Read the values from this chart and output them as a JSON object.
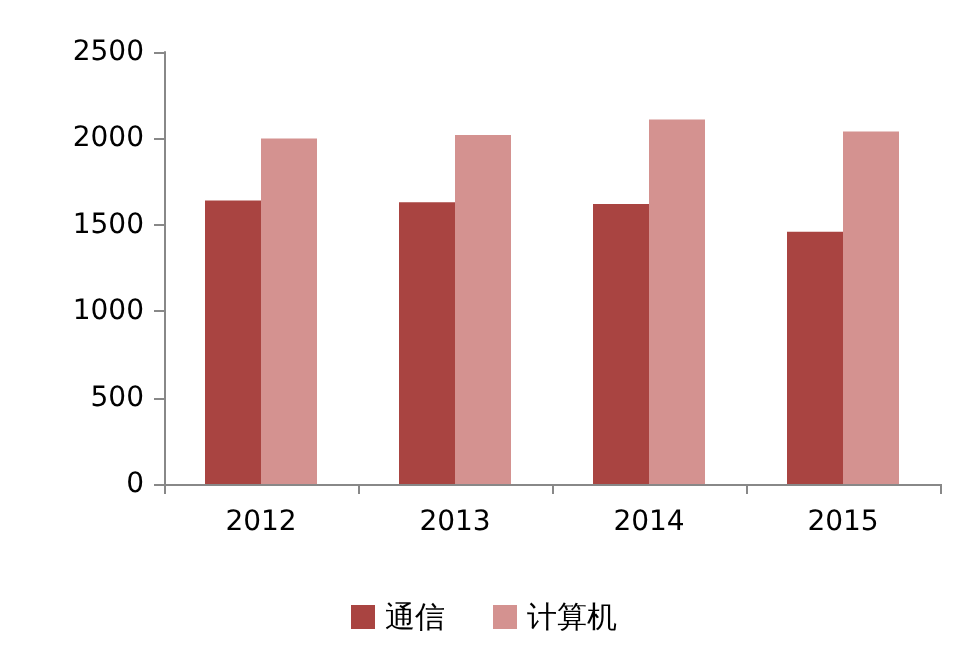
{
  "chart_data": {
    "type": "bar",
    "categories": [
      "2012",
      "2013",
      "2014",
      "2015"
    ],
    "series": [
      {
        "name": "通信",
        "color": "#a94441",
        "values": [
          1640,
          1630,
          1620,
          1460
        ]
      },
      {
        "name": "计算机",
        "color": "#d49290",
        "values": [
          2000,
          2020,
          2110,
          2040
        ]
      }
    ],
    "ylim": [
      0,
      2500
    ],
    "yticks": [
      0,
      500,
      1000,
      1500,
      2000,
      2500
    ],
    "grid": false,
    "legend": "bottom"
  }
}
